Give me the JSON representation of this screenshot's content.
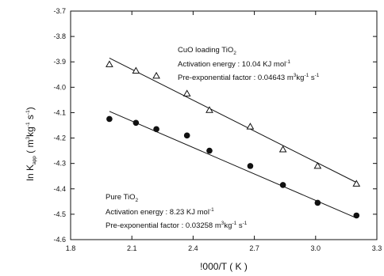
{
  "chart_data": {
    "type": "scatter",
    "xlabel": "!000/T ( K )",
    "ylabel": {
      "base": "ln K",
      "sub": "app",
      "unit_open": " ( m",
      "unit_exp1": "3",
      "unit_kg": "kg",
      "unit_exp2": "-1",
      "unit_s": " s",
      "unit_exp3": "-1",
      "unit_close": ")"
    },
    "xlim": [
      1.8,
      3.3
    ],
    "ylim": [
      -4.6,
      -3.7
    ],
    "x_ticks": [
      1.8,
      2.1,
      2.4,
      2.7,
      3.0,
      3.3
    ],
    "x_tick_labels": [
      "1.8",
      "2.1",
      "2.4",
      "2.7",
      "3.0",
      "3.3"
    ],
    "y_ticks": [
      -3.7,
      -3.8,
      -3.9,
      -4.0,
      -4.1,
      -4.2,
      -4.3,
      -4.4,
      -4.5,
      -4.6
    ],
    "y_tick_labels": [
      "-3.7",
      "-3.8",
      "-3.9",
      "-4.0",
      "-4.1",
      "-4.2",
      "-4.3",
      "-4.4",
      "-4.5",
      "-4.6"
    ],
    "series": [
      {
        "marker": "triangle-open",
        "x": [
          1.99,
          2.12,
          2.22,
          2.37,
          2.48,
          2.68,
          2.84,
          3.01,
          3.2
        ],
        "y": [
          -3.91,
          -3.935,
          -3.955,
          -4.025,
          -4.09,
          -4.155,
          -4.245,
          -4.31,
          -4.38
        ],
        "fit": {
          "x": [
            1.99,
            3.2
          ],
          "y": [
            -3.885,
            -4.375
          ]
        },
        "annotation": {
          "name": "CuO loading TiO",
          "name_sub": "2",
          "ea_text": "Activation energy : 10.04 KJ mol",
          "ea_exp": "-1",
          "pf_text": "Pre-exponential factor : 0.04643 m",
          "pf_exp1": "3",
          "pf_kg": "kg",
          "pf_exp2": "-1",
          "pf_s": " s",
          "pf_exp3": "-1"
        }
      },
      {
        "marker": "circle-filled",
        "x": [
          1.99,
          2.12,
          2.22,
          2.37,
          2.48,
          2.68,
          2.84,
          3.01,
          3.2
        ],
        "y": [
          -4.125,
          -4.14,
          -4.165,
          -4.19,
          -4.25,
          -4.31,
          -4.385,
          -4.455,
          -4.505
        ],
        "fit": {
          "x": [
            1.99,
            3.2
          ],
          "y": [
            -4.095,
            -4.515
          ]
        },
        "annotation": {
          "name": "Pure TiO",
          "name_sub": "2",
          "ea_text": "Activation energy : 8.23 KJ mol",
          "ea_exp": "-1",
          "pf_text": "Pre-exponential factor : 0.03258 m",
          "pf_exp1": "3",
          "pf_kg": "kg",
          "pf_exp2": "-1",
          "pf_s": " s",
          "pf_exp3": "-1"
        }
      }
    ]
  }
}
